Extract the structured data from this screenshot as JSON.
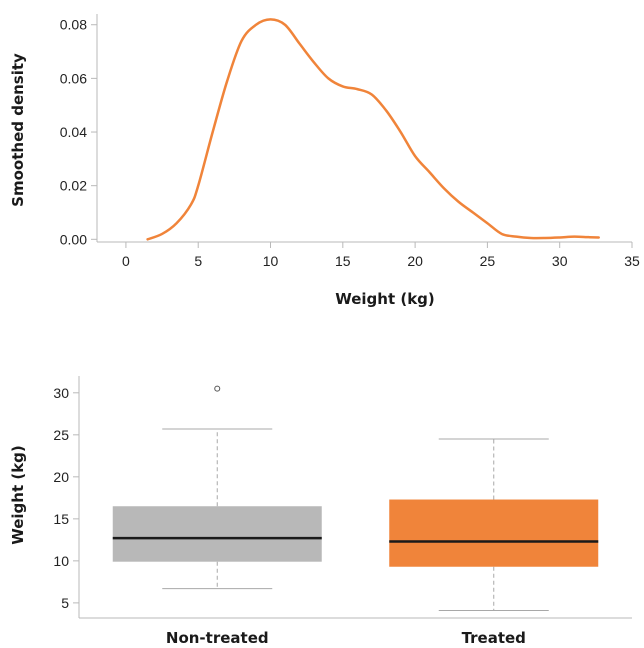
{
  "chart_data": [
    {
      "type": "line",
      "title": "",
      "xlabel": "Weight (kg)",
      "ylabel": "Smoothed density",
      "xlim": [
        -2,
        35
      ],
      "ylim": [
        -0.001,
        0.084
      ],
      "xticks": [
        0,
        5,
        10,
        15,
        20,
        25,
        30,
        35
      ],
      "yticks": [
        0.0,
        0.02,
        0.04,
        0.06,
        0.08
      ],
      "ytick_labels": [
        "0.00",
        "0.02",
        "0.04",
        "0.06",
        "0.08"
      ],
      "grid": false,
      "color": "#f0843a",
      "x": [
        1.5,
        2.5,
        3.5,
        4.5,
        5,
        6,
        7,
        8,
        9,
        10,
        11,
        12,
        13,
        14,
        15,
        16,
        17,
        18,
        19,
        20,
        21,
        22,
        23,
        24,
        25,
        26,
        27,
        28,
        29,
        30,
        31,
        32,
        32.7
      ],
      "y": [
        0.0,
        0.002,
        0.006,
        0.013,
        0.02,
        0.04,
        0.059,
        0.074,
        0.08,
        0.082,
        0.08,
        0.073,
        0.066,
        0.06,
        0.057,
        0.056,
        0.054,
        0.048,
        0.04,
        0.031,
        0.025,
        0.019,
        0.014,
        0.01,
        0.006,
        0.002,
        0.001,
        0.0005,
        0.0005,
        0.0007,
        0.001,
        0.0008,
        0.0007
      ]
    },
    {
      "type": "box",
      "title": "",
      "xlabel": "",
      "ylabel": "Weight (kg)",
      "ylim": [
        3.2,
        32
      ],
      "yticks": [
        5,
        10,
        15,
        20,
        25,
        30
      ],
      "categories": [
        "Non-treated",
        "Treated"
      ],
      "grid": false,
      "boxes": [
        {
          "name": "Non-treated",
          "whisker_low": 6.7,
          "q1": 9.9,
          "median": 12.7,
          "q3": 16.5,
          "whisker_high": 25.7,
          "outliers": [
            30.5
          ],
          "color": "#b8b8b8"
        },
        {
          "name": "Treated",
          "whisker_low": 4.1,
          "q1": 9.3,
          "median": 12.3,
          "q3": 17.3,
          "whisker_high": 24.5,
          "outliers": [],
          "color": "#f0843a"
        }
      ]
    }
  ]
}
